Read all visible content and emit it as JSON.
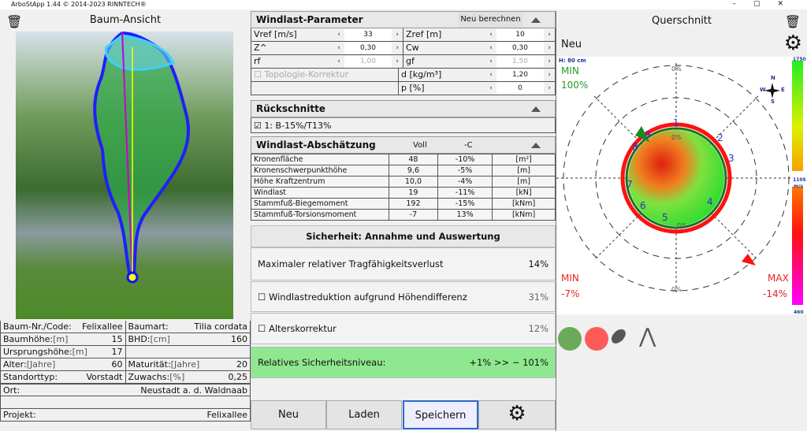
{
  "app": {
    "title": "ArboStApp 1.44  © 2014-2023 RINNTECH®"
  },
  "left": {
    "title": "Baum-Ansicht",
    "info": [
      [
        {
          "l": "Baum-Nr./Code:",
          "u": "",
          "v": "Felixallee"
        },
        {
          "l": "Baumart:",
          "u": "",
          "v": "Tilia cordata"
        }
      ],
      [
        {
          "l": "Baumhöhe:",
          "u": "[m]",
          "v": "15"
        },
        {
          "l": "BHD:",
          "u": "[cm]",
          "v": "160"
        }
      ],
      [
        {
          "l": "Ursprungshöhe:",
          "u": "[m]",
          "v": "17"
        },
        {
          "l": "",
          "u": "",
          "v": ""
        }
      ],
      [
        {
          "l": "Alter:",
          "u": "[Jahre]",
          "v": "60"
        },
        {
          "l": "Maturität:",
          "u": "[Jahre]",
          "v": "20"
        }
      ],
      [
        {
          "l": "Standorttyp:",
          "u": "",
          "v": "Vorstadt"
        },
        {
          "l": "Zuwachs:",
          "u": "[%]",
          "v": "0,25"
        }
      ]
    ],
    "ort_label": "Ort:",
    "ort": "Neustadt a. d. Waldnaab",
    "projekt_label": "Projekt:",
    "projekt": "Felixallee"
  },
  "windparam": {
    "title": "Windlast-Parameter",
    "recalc": "Neu berechnen",
    "rows": [
      {
        "l1": "Vref [m/s]",
        "v1": "33",
        "l2": "Zref [m]",
        "v2": "10",
        "d1": false,
        "d2": false
      },
      {
        "l1": "Z^",
        "v1": "0,30",
        "l2": "Cw",
        "v2": "0,30",
        "d1": false,
        "d2": false
      },
      {
        "l1": "rf",
        "v1": "1,00",
        "l2": "gf",
        "v2": "1,50",
        "d1": true,
        "d2": true
      }
    ],
    "topo": "Topologie-Korrektur",
    "d_label": "d [kg/m³]",
    "d": "1,20",
    "p_label": "p [%]",
    "p": "0"
  },
  "rueck": {
    "title": "Rückschnitte",
    "item": "1: B-15%/T13%"
  },
  "abschaetzung": {
    "title": "Windlast-Abschätzung",
    "col1": "Voll",
    "col2": "-C",
    "rows": [
      [
        "Kronenfläche",
        "48",
        "-10%",
        "[m²]"
      ],
      [
        "Kronenschwerpunkthöhe",
        "9,6",
        "-5%",
        "[m]"
      ],
      [
        "Höhe Kraftzentrum",
        "10,0",
        "-4%",
        "[m]"
      ],
      [
        "Windlast",
        "19",
        "-11%",
        "[kN]"
      ],
      [
        "Stammfuß-Biegemoment",
        "192",
        "-15%",
        "[kNm]"
      ],
      [
        "Stammfuß-Torsionsmoment",
        "-7",
        "13%",
        "[kNm]"
      ]
    ]
  },
  "sicherheit": {
    "title": "Sicherheit: Annahme und Auswertung",
    "max_label": "Maximaler relativer Tragfähigkeitsverlust",
    "max": "14%",
    "hoehe_label": "Windlastreduktion aufgrund Höhendifferenz",
    "hoehe": "31%",
    "alter_label": "Alterskorrektur",
    "alter": "12%",
    "rel_label": "Relatives Sicherheitsniveau:",
    "rel": "+1%  >>  ~ 101%"
  },
  "buttons": {
    "neu": "Neu",
    "laden": "Laden",
    "speichern": "Speichern"
  },
  "right": {
    "title": "Querschnitt",
    "sub": "Neu",
    "height": "H: 80 cm",
    "min_green_label": "MIN",
    "min_green": "100%",
    "min_red_label": "MIN",
    "min_red": "-7%",
    "max_red_label": "MAX",
    "max_red": "-14%",
    "scale": {
      "top": "1750",
      "mid": "1105",
      "unit": "m/s",
      "bot": "460"
    },
    "ring_labels": [
      "0%",
      "0%",
      "0%",
      "0%"
    ],
    "compass": {
      "n": "N",
      "s": "S",
      "w": "W",
      "e": "E"
    },
    "sensors": [
      "1",
      "2",
      "3",
      "4",
      "5",
      "6",
      "7",
      "8",
      "9"
    ],
    "colors": {
      "green": "#6aaa5a",
      "red": "#ff5a5a",
      "accent_green": "#8fe88f"
    }
  }
}
